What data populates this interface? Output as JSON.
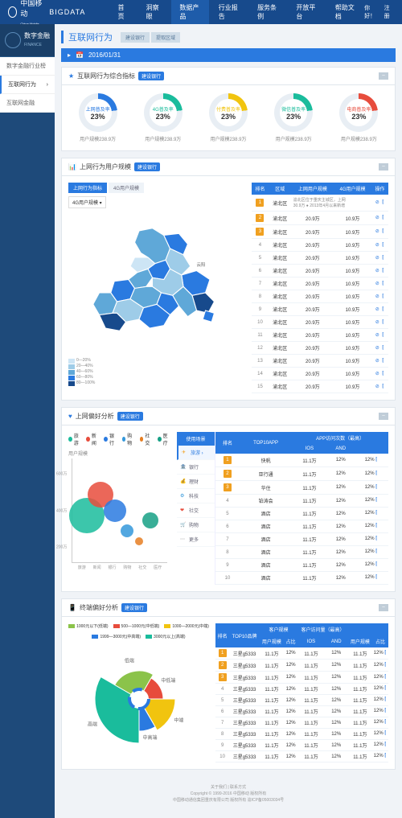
{
  "header": {
    "brand1": "中国移动",
    "brand1_sub": "China Mobile",
    "brand2": "BIGDATA",
    "nav": [
      "首页",
      "洞察眼",
      "数据产品",
      "行业报告",
      "服务条例",
      "开放平台",
      "帮助文档"
    ],
    "nav_active": 2,
    "user_hello": "你好！",
    "user_action": "注册"
  },
  "sidebar": {
    "category": "数字金融",
    "category_en": "FINANCE",
    "links": [
      "数字金融行业榜",
      "互联网行为",
      "互联网金融"
    ],
    "active": 1
  },
  "page": {
    "title": "互联网行为",
    "tabs": [
      "建设银行",
      "提取区域"
    ],
    "date_label": "2016/01/31"
  },
  "gauges_section": {
    "title": "互联网行为综合指标",
    "badge": "建设银行",
    "toggle": "−",
    "gauges": [
      {
        "label": "上网普及率",
        "pct": "23%",
        "sub": "用户规模238.9万",
        "color": "#2a7ae0"
      },
      {
        "label": "4G普及率",
        "pct": "23%",
        "sub": "用户规模238.9万",
        "color": "#1abc9c"
      },
      {
        "label": "付费普及率",
        "pct": "23%",
        "sub": "用户规模238.9万",
        "color": "#f1c40f"
      },
      {
        "label": "微信普及率",
        "pct": "23%",
        "sub": "用户规模238.9万",
        "color": "#1abc9c"
      },
      {
        "label": "电商普及率",
        "pct": "23%",
        "sub": "用户规模238.9万",
        "color": "#e74c3c"
      }
    ]
  },
  "map_section": {
    "title": "上网行为用户规模",
    "badge": "建设银行",
    "tabs": [
      "上网行为指标",
      "4G用户规模"
    ],
    "dropdown": "4G用户规模",
    "legend": [
      {
        "label": "0—20%",
        "color": "#cde5f5"
      },
      {
        "label": "20—40%",
        "color": "#9ecce8"
      },
      {
        "label": "40—60%",
        "color": "#5fa8d8"
      },
      {
        "label": "60—80%",
        "color": "#2a7ae0"
      },
      {
        "label": "80—100%",
        "color": "#174a8c"
      }
    ],
    "table": {
      "headers": [
        "排名",
        "区域",
        "上网用户规模",
        "4G用户规模",
        "操作"
      ],
      "rows": [
        {
          "rank": 1,
          "top": true,
          "area": "渝北区",
          "v1": "渝北区位于重庆主城区，上网",
          "v2": "",
          "note": "30.9万 ● 2013年4月以来新增"
        },
        {
          "rank": 2,
          "top": true,
          "area": "渝北区",
          "v1": "20.9万",
          "v2": "10.9万"
        },
        {
          "rank": 3,
          "top": true,
          "area": "渝北区",
          "v1": "20.9万",
          "v2": "10.9万"
        },
        {
          "rank": 4,
          "area": "渝北区",
          "v1": "20.9万",
          "v2": "10.9万"
        },
        {
          "rank": 5,
          "area": "渝北区",
          "v1": "20.9万",
          "v2": "10.9万"
        },
        {
          "rank": 6,
          "area": "渝北区",
          "v1": "20.9万",
          "v2": "10.9万"
        },
        {
          "rank": 7,
          "area": "渝北区",
          "v1": "20.9万",
          "v2": "10.9万"
        },
        {
          "rank": 8,
          "area": "渝北区",
          "v1": "20.9万",
          "v2": "10.9万"
        },
        {
          "rank": 9,
          "area": "渝北区",
          "v1": "20.9万",
          "v2": "10.9万"
        },
        {
          "rank": 10,
          "area": "渝北区",
          "v1": "20.9万",
          "v2": "10.9万"
        },
        {
          "rank": 11,
          "area": "渝北区",
          "v1": "20.9万",
          "v2": "10.9万"
        },
        {
          "rank": 12,
          "area": "渝北区",
          "v1": "20.9万",
          "v2": "10.9万"
        },
        {
          "rank": 13,
          "area": "渝北区",
          "v1": "20.9万",
          "v2": "10.9万"
        },
        {
          "rank": 14,
          "area": "渝北区",
          "v1": "20.9万",
          "v2": "10.9万"
        },
        {
          "rank": 15,
          "area": "渝北区",
          "v1": "20.9万",
          "v2": "10.9万"
        }
      ]
    }
  },
  "pref_section": {
    "title": "上网偏好分析",
    "badge": "建设银行",
    "legend": [
      {
        "label": "旅游",
        "color": "#1abc9c"
      },
      {
        "label": "新闻",
        "color": "#e74c3c"
      },
      {
        "label": "银行",
        "color": "#2a7ae0"
      },
      {
        "label": "购物",
        "color": "#3498db"
      },
      {
        "label": "社交",
        "color": "#e67e22"
      },
      {
        "label": "医疗",
        "color": "#16a085"
      }
    ],
    "y_title": "用户规模",
    "y_ticks": [
      "600万",
      "400万",
      "200万"
    ],
    "x_ticks": [
      "旅游",
      "新闻",
      "银行",
      "购物",
      "社交",
      "医疗"
    ],
    "bubbles": [
      {
        "x": 15,
        "y": 55,
        "r": 22,
        "color": "#1abc9c"
      },
      {
        "x": 30,
        "y": 35,
        "r": 16,
        "color": "#e74c3c"
      },
      {
        "x": 45,
        "y": 50,
        "r": 14,
        "color": "#2a7ae0"
      },
      {
        "x": 58,
        "y": 70,
        "r": 8,
        "color": "#3498db"
      },
      {
        "x": 70,
        "y": 80,
        "r": 5,
        "color": "#e67e22"
      },
      {
        "x": 82,
        "y": 60,
        "r": 10,
        "color": "#16a085"
      }
    ],
    "categories": [
      {
        "label": "旅游",
        "icon": "✈",
        "color": "#f39c12",
        "active": true
      },
      {
        "label": "银行",
        "icon": "🏦",
        "color": "#2a7ae0"
      },
      {
        "label": "理财",
        "icon": "💰",
        "color": "#27ae60"
      },
      {
        "label": "科技",
        "icon": "⚙",
        "color": "#3498db"
      },
      {
        "label": "社交",
        "icon": "❤",
        "color": "#e74c3c"
      },
      {
        "label": "购物",
        "icon": "🛒",
        "color": "#e67e22"
      },
      {
        "label": "更多",
        "icon": "⋯",
        "color": "#888"
      }
    ],
    "app_table": {
      "group_header": "APP访问次数（最高）",
      "headers": [
        "使用场景",
        "排名",
        "TOP10APP",
        "IOS",
        "AND"
      ],
      "rows": [
        {
          "rank": 1,
          "top": true,
          "app": "快帆",
          "v1": "11.1万",
          "v2": "12%",
          "v3": "12%"
        },
        {
          "rank": 2,
          "top": true,
          "app": "亚行通",
          "v1": "11.1万",
          "v2": "12%",
          "v3": "12%"
        },
        {
          "rank": 3,
          "top": true,
          "app": "华住",
          "v1": "11.1万",
          "v2": "12%",
          "v3": "12%"
        },
        {
          "rank": 4,
          "app": "铂涛会",
          "v1": "11.1万",
          "v2": "12%",
          "v3": "12%"
        },
        {
          "rank": 5,
          "app": "酒店",
          "v1": "11.1万",
          "v2": "12%",
          "v3": "12%"
        },
        {
          "rank": 6,
          "app": "酒店",
          "v1": "11.1万",
          "v2": "12%",
          "v3": "12%"
        },
        {
          "rank": 7,
          "app": "酒店",
          "v1": "11.1万",
          "v2": "12%",
          "v3": "12%"
        },
        {
          "rank": 8,
          "app": "酒店",
          "v1": "11.1万",
          "v2": "12%",
          "v3": "12%"
        },
        {
          "rank": 9,
          "app": "酒店",
          "v1": "11.1万",
          "v2": "12%",
          "v3": "12%"
        },
        {
          "rank": 10,
          "app": "酒店",
          "v1": "11.1万",
          "v2": "12%",
          "v3": "12%"
        }
      ]
    }
  },
  "term_section": {
    "title": "终端偏好分析",
    "badge": "建设银行",
    "legend": [
      {
        "label": "1000元以下(低端)",
        "color": "#8bc34a"
      },
      {
        "label": "500—1000元(中低端)",
        "color": "#e74c3c"
      },
      {
        "label": "1000—2000元(中端)",
        "color": "#f1c40f"
      },
      {
        "label": "1999—3000元(中高端)",
        "color": "#2a7ae0"
      },
      {
        "label": "3000元以上(高端)",
        "color": "#1abc9c"
      }
    ],
    "slices": [
      {
        "label": "高端",
        "color": "#1abc9c",
        "start": 180,
        "end": 300,
        "r": 55
      },
      {
        "label": "低端",
        "color": "#8bc34a",
        "start": 300,
        "end": 30,
        "r": 35
      },
      {
        "label": "中低端",
        "color": "#e74c3c",
        "start": 30,
        "end": 90,
        "r": 30
      },
      {
        "label": "中端",
        "color": "#f1c40f",
        "start": 90,
        "end": 150,
        "r": 45
      },
      {
        "label": "中高端",
        "color": "#2a7ae0",
        "start": 150,
        "end": 180,
        "r": 40
      }
    ],
    "table": {
      "group1": "客户规模",
      "group2": "客户访问量（最高）",
      "headers": [
        "排名",
        "TOP10品牌",
        "用户规模",
        "占比",
        "IOS",
        "AND",
        "用户规模",
        "占比"
      ],
      "rows": [
        {
          "rank": 1,
          "top": true,
          "brand": "三星g5333",
          "a": "11.1万",
          "b": "12%",
          "c": "11.1万",
          "d": "12%",
          "e": "11.1万",
          "f": "12%"
        },
        {
          "rank": 2,
          "top": true,
          "brand": "三星g5333",
          "a": "11.1万",
          "b": "12%",
          "c": "11.1万",
          "d": "12%",
          "e": "11.1万",
          "f": "12%"
        },
        {
          "rank": 3,
          "top": true,
          "brand": "三星g5333",
          "a": "11.1万",
          "b": "12%",
          "c": "11.1万",
          "d": "12%",
          "e": "11.1万",
          "f": "12%"
        },
        {
          "rank": 4,
          "brand": "三星g5333",
          "a": "11.1万",
          "b": "12%",
          "c": "11.1万",
          "d": "12%",
          "e": "11.1万",
          "f": "12%"
        },
        {
          "rank": 5,
          "brand": "三星g5333",
          "a": "11.1万",
          "b": "12%",
          "c": "11.1万",
          "d": "12%",
          "e": "11.1万",
          "f": "12%"
        },
        {
          "rank": 6,
          "brand": "三星g5333",
          "a": "11.1万",
          "b": "12%",
          "c": "11.1万",
          "d": "12%",
          "e": "11.1万",
          "f": "12%"
        },
        {
          "rank": 7,
          "brand": "三星g5333",
          "a": "11.1万",
          "b": "12%",
          "c": "11.1万",
          "d": "12%",
          "e": "11.1万",
          "f": "12%"
        },
        {
          "rank": 8,
          "brand": "三星g5333",
          "a": "11.1万",
          "b": "12%",
          "c": "11.1万",
          "d": "12%",
          "e": "11.1万",
          "f": "12%"
        },
        {
          "rank": 9,
          "brand": "三星g5333",
          "a": "11.1万",
          "b": "12%",
          "c": "11.1万",
          "d": "12%",
          "e": "11.1万",
          "f": "12%"
        },
        {
          "rank": 10,
          "brand": "三星g5333",
          "a": "11.1万",
          "b": "12%",
          "c": "11.1万",
          "d": "12%",
          "e": "11.1万",
          "f": "12%"
        }
      ]
    }
  },
  "footer": {
    "line1": "关于我们 | 联系方式",
    "line2": "Copyright © 1999-2016 中国移动 版权所有",
    "line3": "中国移动通信集团重庆有限公司 版权所有 渝ICP备05003034号"
  }
}
